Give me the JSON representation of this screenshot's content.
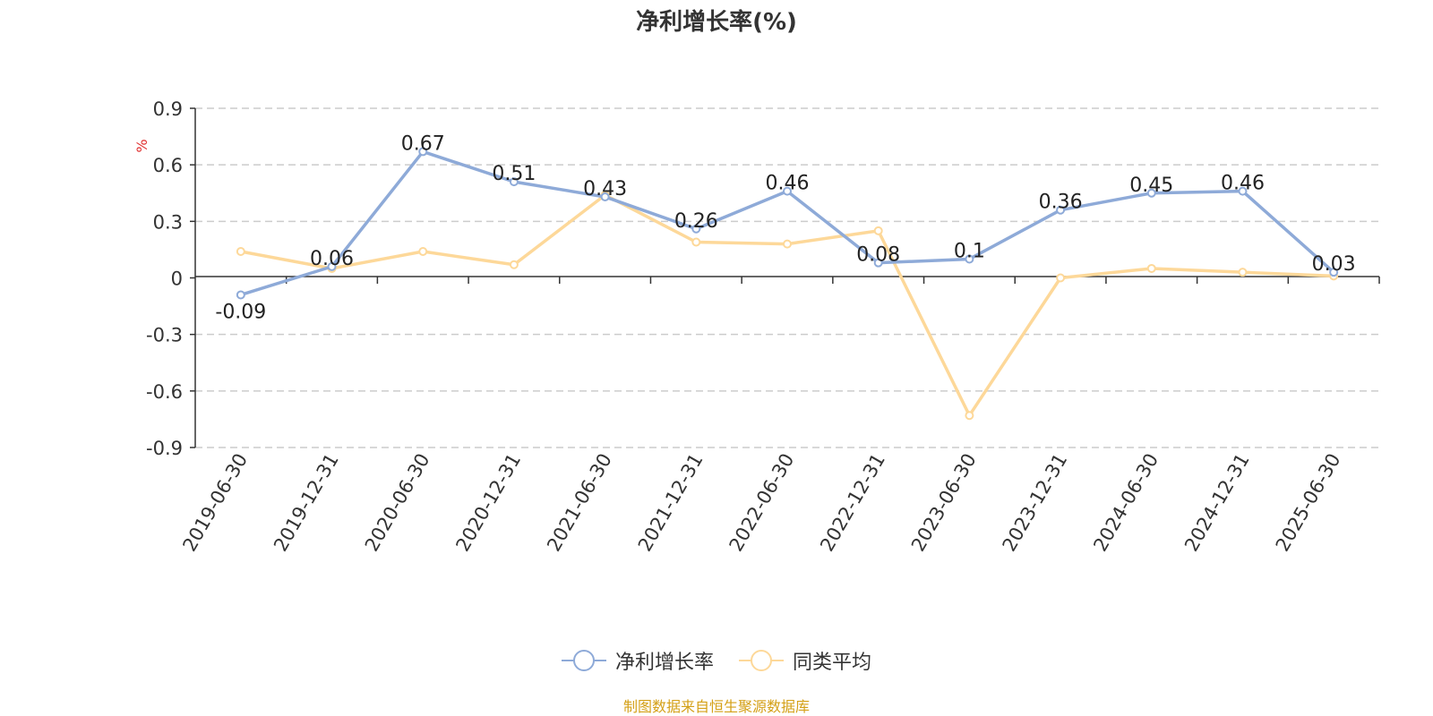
{
  "chart_data": {
    "type": "line",
    "title": "净利增长率(%)",
    "ylabel": "%",
    "ylim": [
      -0.9,
      0.9
    ],
    "yticks": [
      0.9,
      0.6,
      0.3,
      0,
      -0.3,
      -0.6,
      -0.9
    ],
    "ytick_labels": [
      "0.9",
      "0.6",
      "0.3",
      "0",
      "-0.3",
      "-0.6",
      "-0.9"
    ],
    "grid": true,
    "legend_position": "bottom",
    "categories": [
      "2019-06-30",
      "2019-12-31",
      "2020-06-30",
      "2020-12-31",
      "2021-06-30",
      "2021-12-31",
      "2022-06-30",
      "2022-12-31",
      "2023-06-30",
      "2023-12-31",
      "2024-06-30",
      "2024-12-31",
      "2025-06-30"
    ],
    "series": [
      {
        "name": "净利增长率",
        "color": "#8eaad8",
        "values": [
          -0.09,
          0.06,
          0.67,
          0.51,
          0.43,
          0.26,
          0.46,
          0.08,
          0.1,
          0.36,
          0.45,
          0.46,
          0.03
        ],
        "labels": [
          "-0.09",
          "0.06",
          "0.67",
          "0.51",
          "0.43",
          "0.26",
          "0.46",
          "0.08",
          "0.1",
          "0.36",
          "0.45",
          "0.46",
          "0.03"
        ]
      },
      {
        "name": "同类平均",
        "color": "#fdd899",
        "values": [
          0.14,
          0.05,
          0.14,
          0.07,
          0.44,
          0.19,
          0.18,
          0.25,
          -0.73,
          0.0,
          0.05,
          0.03,
          0.01
        ]
      }
    ]
  },
  "source_note": "制图数据来自恒生聚源数据库"
}
